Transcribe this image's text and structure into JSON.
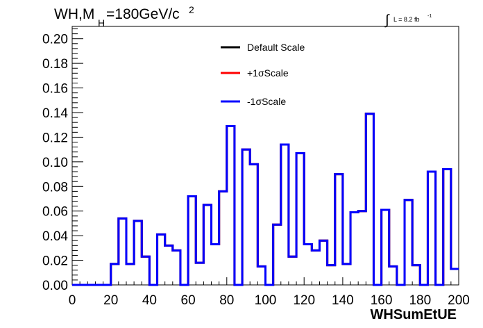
{
  "chart_data": {
    "type": "line",
    "title_main": "WH,M",
    "title_sub": "H",
    "title_rest": "=180GeV/c",
    "title_sup": "2",
    "luminosity_label": "L = 8.2 fb",
    "luminosity_sup": "-1",
    "xlabel": "WHSumEtUE",
    "xlim": [
      0,
      200
    ],
    "ylim": [
      0,
      0.21
    ],
    "x_ticks": [
      0,
      20,
      40,
      60,
      80,
      100,
      120,
      140,
      160,
      180,
      200
    ],
    "x_tick_labels": [
      "0",
      "20",
      "40",
      "60",
      "80",
      "100",
      "120",
      "140",
      "160",
      "180",
      "200"
    ],
    "y_ticks": [
      0,
      0.02,
      0.04,
      0.06,
      0.08,
      0.1,
      0.12,
      0.14,
      0.16,
      0.18,
      0.2
    ],
    "y_tick_labels": [
      "0.00",
      "0.02",
      "0.04",
      "0.06",
      "0.08",
      "0.10",
      "0.12",
      "0.14",
      "0.16",
      "0.18",
      "0.20"
    ],
    "bin_edges": [
      0,
      4,
      8,
      12,
      16,
      20,
      24,
      28,
      32,
      36,
      40,
      44,
      48,
      52,
      56,
      60,
      64,
      68,
      72,
      76,
      80,
      84,
      88,
      92,
      96,
      100,
      104,
      108,
      112,
      116,
      120,
      124,
      128,
      132,
      136,
      140,
      144,
      148,
      152,
      156,
      160,
      164,
      168,
      172,
      176,
      180,
      184,
      188,
      192,
      196,
      200
    ],
    "series": [
      {
        "name": "Default Scale",
        "color": "#000000",
        "values": [
          0,
          0,
          0,
          0,
          0,
          0.017,
          0.054,
          0.017,
          0.052,
          0.023,
          0,
          0.041,
          0.032,
          0.028,
          0,
          0.072,
          0.018,
          0.065,
          0.033,
          0.076,
          0.129,
          0,
          0.11,
          0.098,
          0.015,
          0,
          0.049,
          0.114,
          0.023,
          0.107,
          0.033,
          0.028,
          0.036,
          0.016,
          0.09,
          0.017,
          0.059,
          0.06,
          0.139,
          0,
          0.061,
          0.015,
          0,
          0.069,
          0.016,
          0,
          0.092,
          0,
          0.094,
          0.013
        ]
      },
      {
        "name": "+1σScale",
        "color": "#ff0000",
        "values": [
          0,
          0,
          0,
          0,
          0,
          0.017,
          0.054,
          0.017,
          0.052,
          0.023,
          0,
          0.041,
          0.032,
          0.028,
          0,
          0.072,
          0.018,
          0.065,
          0.033,
          0.076,
          0.129,
          0,
          0.11,
          0.098,
          0.015,
          0,
          0.049,
          0.114,
          0.023,
          0.107,
          0.033,
          0.028,
          0.036,
          0.016,
          0.09,
          0.017,
          0.059,
          0.06,
          0.139,
          0,
          0.061,
          0.015,
          0,
          0.069,
          0.016,
          0,
          0.092,
          0,
          0.094,
          0.013
        ]
      },
      {
        "name": "-1σScale",
        "color": "#0000ff",
        "values": [
          0,
          0,
          0,
          0,
          0,
          0.017,
          0.054,
          0.017,
          0.052,
          0.023,
          0,
          0.041,
          0.032,
          0.028,
          0,
          0.072,
          0.018,
          0.065,
          0.033,
          0.076,
          0.129,
          0,
          0.11,
          0.098,
          0.015,
          0,
          0.049,
          0.114,
          0.023,
          0.107,
          0.033,
          0.028,
          0.036,
          0.016,
          0.09,
          0.017,
          0.059,
          0.06,
          0.139,
          0,
          0.061,
          0.015,
          0,
          0.069,
          0.016,
          0,
          0.092,
          0,
          0.094,
          0.013
        ]
      }
    ],
    "legend_position": "top-center",
    "grid": false
  }
}
